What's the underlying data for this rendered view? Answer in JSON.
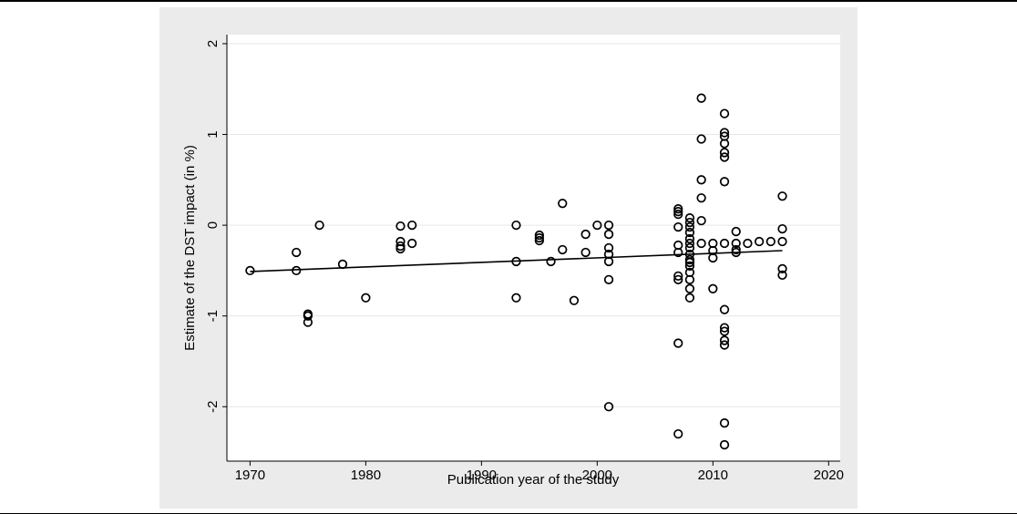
{
  "chart_data": {
    "type": "scatter",
    "title": "",
    "xlabel": "Publication year of the study",
    "ylabel": "Estimate of the DST impact (in %)",
    "xlim": [
      1968,
      2021
    ],
    "ylim": [
      -2.6,
      2.1
    ],
    "xticks": [
      1970,
      1980,
      1990,
      2000,
      2010,
      2020
    ],
    "yticks": [
      -2,
      -1,
      0,
      1,
      2
    ],
    "ytick_labels": [
      "-2",
      "-1",
      "0",
      "1",
      "2"
    ],
    "grid": "horizontal",
    "legend": "none",
    "point_color": "#000000",
    "fit_line": {
      "x": [
        1970,
        2016
      ],
      "y": [
        -0.51,
        -0.28
      ]
    },
    "points": [
      [
        1970,
        -0.5
      ],
      [
        1974,
        -0.3
      ],
      [
        1974,
        -0.5
      ],
      [
        1975,
        -0.98
      ],
      [
        1975,
        -1.0
      ],
      [
        1975,
        -1.07
      ],
      [
        1976,
        0.0
      ],
      [
        1978,
        -0.43
      ],
      [
        1980,
        -0.8
      ],
      [
        1983,
        -0.01
      ],
      [
        1983,
        -0.18
      ],
      [
        1983,
        -0.23
      ],
      [
        1983,
        -0.26
      ],
      [
        1984,
        0.0
      ],
      [
        1984,
        -0.2
      ],
      [
        1993,
        0.0
      ],
      [
        1993,
        -0.4
      ],
      [
        1993,
        -0.8
      ],
      [
        1995,
        -0.11
      ],
      [
        1995,
        -0.14
      ],
      [
        1995,
        -0.17
      ],
      [
        1996,
        -0.4
      ],
      [
        1997,
        0.24
      ],
      [
        1997,
        -0.27
      ],
      [
        1998,
        -0.83
      ],
      [
        1999,
        -0.1
      ],
      [
        1999,
        -0.3
      ],
      [
        2000,
        0.0
      ],
      [
        2001,
        0.0
      ],
      [
        2001,
        -0.1
      ],
      [
        2001,
        -0.25
      ],
      [
        2001,
        -0.32
      ],
      [
        2001,
        -0.4
      ],
      [
        2001,
        -0.6
      ],
      [
        2001,
        -2.0
      ],
      [
        2007,
        0.18
      ],
      [
        2007,
        0.15
      ],
      [
        2007,
        0.12
      ],
      [
        2007,
        -0.02
      ],
      [
        2007,
        -0.22
      ],
      [
        2007,
        -0.3
      ],
      [
        2007,
        -0.56
      ],
      [
        2007,
        -0.6
      ],
      [
        2007,
        -1.3
      ],
      [
        2007,
        -2.3
      ],
      [
        2008,
        0.08
      ],
      [
        2008,
        0.03
      ],
      [
        2008,
        -0.02
      ],
      [
        2008,
        -0.08
      ],
      [
        2008,
        -0.15
      ],
      [
        2008,
        -0.2
      ],
      [
        2008,
        -0.25
      ],
      [
        2008,
        -0.32
      ],
      [
        2008,
        -0.38
      ],
      [
        2008,
        -0.41
      ],
      [
        2008,
        -0.45
      ],
      [
        2008,
        -0.52
      ],
      [
        2008,
        -0.6
      ],
      [
        2008,
        -0.7
      ],
      [
        2008,
        -0.8
      ],
      [
        2009,
        1.4
      ],
      [
        2009,
        0.95
      ],
      [
        2009,
        0.5
      ],
      [
        2009,
        0.3
      ],
      [
        2009,
        0.05
      ],
      [
        2009,
        -0.2
      ],
      [
        2010,
        -0.2
      ],
      [
        2010,
        -0.28
      ],
      [
        2010,
        -0.36
      ],
      [
        2010,
        -0.7
      ],
      [
        2011,
        1.23
      ],
      [
        2011,
        1.02
      ],
      [
        2011,
        0.98
      ],
      [
        2011,
        0.9
      ],
      [
        2011,
        0.8
      ],
      [
        2011,
        0.75
      ],
      [
        2011,
        0.48
      ],
      [
        2011,
        -0.2
      ],
      [
        2011,
        -0.93
      ],
      [
        2011,
        -1.13
      ],
      [
        2011,
        -1.17
      ],
      [
        2011,
        -1.27
      ],
      [
        2011,
        -1.32
      ],
      [
        2011,
        -2.18
      ],
      [
        2011,
        -2.42
      ],
      [
        2012,
        -0.07
      ],
      [
        2012,
        -0.2
      ],
      [
        2012,
        -0.27
      ],
      [
        2012,
        -0.3
      ],
      [
        2013,
        -0.2
      ],
      [
        2014,
        -0.18
      ],
      [
        2015,
        -0.18
      ],
      [
        2016,
        0.32
      ],
      [
        2016,
        -0.04
      ],
      [
        2016,
        -0.18
      ],
      [
        2016,
        -0.48
      ],
      [
        2016,
        -0.55
      ]
    ]
  }
}
